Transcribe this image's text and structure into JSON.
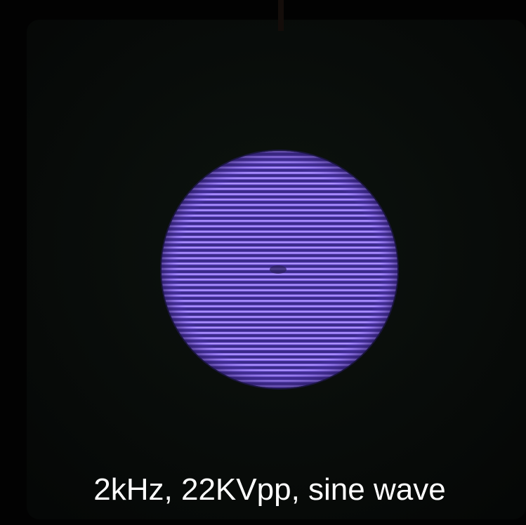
{
  "caption": "2kHz, 22KVpp, sine wave"
}
